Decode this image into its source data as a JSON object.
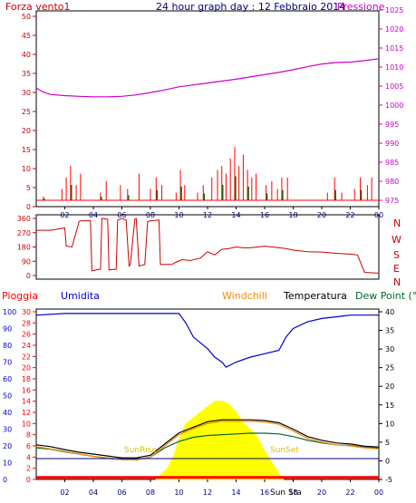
{
  "header": {
    "left_label": "Forza vento1",
    "title": "24 hour graph day : 12 Febbraio 2014",
    "right_label": "Pressione"
  },
  "wind_dir_labels": [
    "N",
    "W",
    "S",
    "E",
    "N"
  ],
  "bottom_header": {
    "rain": "Pioggia",
    "humidity": "Umidita",
    "windchill": "Windchill",
    "temperature": "Temperatura",
    "dewpoint": "Dew Point (°C"
  },
  "annotations": {
    "sunrise": "SunRise",
    "sunset": "SunSet",
    "sun_sta": "Sun Sta"
  },
  "colors": {
    "frame": "#000000",
    "wind_axis": "#cc0000",
    "pressure": "#cc00cc",
    "wind_gust": "#ff0000",
    "wind_avg": "#006600",
    "wind_blue": "#0000cc",
    "direction": "#cc0000",
    "humidity": "#0000cc",
    "temperature": "#000000",
    "windchill": "#ff8800",
    "dewpoint": "#006633",
    "solar": "#ffff00",
    "rain": "#ff0000",
    "zero_line": "#000080"
  },
  "chart_data": [
    {
      "type": "line",
      "panel": "top",
      "x_ticks": [
        "02",
        "04",
        "06",
        "08",
        "10",
        "12",
        "14",
        "16",
        "18",
        "20",
        "22",
        "00"
      ],
      "left_axis": {
        "ticks": [
          0,
          5,
          10,
          15,
          20,
          25,
          30,
          35,
          40,
          45,
          50
        ],
        "ylim": [
          0,
          50
        ]
      },
      "right_axis": {
        "ticks": [
          975,
          980,
          985,
          990,
          995,
          1000,
          1005,
          1010,
          1015,
          1020,
          1025
        ],
        "ylim": [
          975,
          1025
        ]
      },
      "series": [
        {
          "name": "Pressione",
          "axis": "right",
          "x": [
            0,
            0.5,
            1,
            2,
            3,
            4,
            5,
            6,
            7,
            8,
            9,
            10,
            11,
            12,
            13,
            14,
            15,
            16,
            17,
            18,
            19,
            20,
            21,
            22,
            23,
            24
          ],
          "values": [
            1004.5,
            1003.4,
            1002.8,
            1002.5,
            1002.3,
            1002.2,
            1002.2,
            1002.3,
            1002.7,
            1003.3,
            1004.0,
            1004.8,
            1005.3,
            1005.8,
            1006.3,
            1006.8,
            1007.4,
            1008.0,
            1008.6,
            1009.3,
            1010.1,
            1010.8,
            1011.2,
            1011.3,
            1011.7,
            1012.2
          ]
        },
        {
          "name": "",
          "axis": "left",
          "style": "bars",
          "x": [
            0.5,
            1.8,
            2.1,
            2.4,
            2.8,
            3.1,
            4.5,
            4.9,
            5.9,
            6.4,
            7.2,
            8.0,
            8.4,
            8.8,
            9.8,
            10.1,
            10.4,
            11.3,
            11.7,
            12.3,
            12.7,
            13.0,
            13.3,
            13.6,
            13.9,
            14.2,
            14.5,
            14.8,
            15.1,
            15.4,
            16.1,
            16.5,
            16.9,
            17.2,
            17.6,
            20.4,
            20.9,
            21.4,
            22.3,
            22.7,
            23.2,
            23.5
          ],
          "values": [
            1,
            3,
            6,
            9,
            4,
            7,
            2,
            5,
            4,
            3,
            7,
            3,
            6,
            4,
            2,
            8,
            4,
            2,
            4,
            6,
            8,
            9,
            7,
            11,
            14,
            9,
            12,
            8,
            6,
            7,
            4,
            5,
            3,
            6,
            6,
            2,
            6,
            2,
            3,
            6,
            4,
            6
          ]
        }
      ]
    },
    {
      "type": "line",
      "panel": "middle",
      "x_ticks": [],
      "left_axis": {
        "ticks": [
          0,
          90,
          180,
          270,
          360
        ],
        "ylim": [
          0,
          360
        ]
      },
      "series": [
        {
          "name": "",
          "x": [
            0,
            1,
            2,
            2.1,
            2.5,
            3,
            3.1,
            3.8,
            3.9,
            4.5,
            4.6,
            5.0,
            5.1,
            5.6,
            5.7,
            6.0,
            6.3,
            6.5,
            6.6,
            6.9,
            7.0,
            7.2,
            7.6,
            7.8,
            8.0,
            8.6,
            8.7,
            9.5,
            9.7,
            10.2,
            10.8,
            11.5,
            12,
            12.5,
            13,
            13.5,
            14,
            14.5,
            15,
            15.5,
            16,
            17,
            17.5,
            18,
            19,
            20,
            21,
            22,
            22.5,
            23,
            24
          ],
          "values": [
            285,
            285,
            300,
            185,
            180,
            340,
            345,
            345,
            30,
            40,
            360,
            355,
            35,
            40,
            350,
            360,
            350,
            60,
            70,
            355,
            360,
            60,
            70,
            340,
            345,
            350,
            70,
            70,
            80,
            100,
            95,
            110,
            150,
            130,
            165,
            170,
            180,
            175,
            175,
            180,
            185,
            175,
            170,
            160,
            150,
            148,
            140,
            135,
            130,
            20,
            15
          ]
        }
      ]
    },
    {
      "type": "line",
      "panel": "bottom",
      "x_ticks": [
        "02",
        "04",
        "06",
        "08",
        "10",
        "12",
        "14",
        "16",
        "18",
        "20",
        "22",
        "00"
      ],
      "humidity_axis": {
        "ticks": [
          0,
          10,
          20,
          30,
          40,
          50,
          60,
          70,
          80,
          90,
          100
        ],
        "ylim": [
          0,
          100
        ]
      },
      "left_axis": {
        "ticks": [
          0,
          2,
          4,
          6,
          8,
          10,
          12,
          14,
          16,
          18,
          20,
          22,
          24,
          26,
          28,
          30
        ],
        "ylim": [
          0,
          30
        ]
      },
      "right_axis": {
        "ticks": [
          -5,
          0,
          5,
          10,
          15,
          20,
          25,
          30,
          35,
          40
        ],
        "ylim": [
          -5,
          40
        ]
      },
      "series": [
        {
          "name": "Umidita",
          "axis": "humidity",
          "x": [
            0,
            2,
            4,
            6,
            8,
            9,
            10,
            10.5,
            11,
            12,
            12.5,
            13,
            13.3,
            14,
            15,
            16,
            17,
            17.5,
            18,
            19,
            20,
            21,
            22,
            23,
            24
          ],
          "values": [
            98,
            99,
            99,
            99,
            99,
            99,
            99,
            93,
            85,
            78,
            73,
            70,
            67,
            70,
            73,
            75,
            77,
            85,
            90,
            94,
            96,
            97,
            98,
            98,
            98
          ]
        },
        {
          "name": "Temperatura",
          "axis": "right",
          "x": [
            0,
            1,
            2,
            3,
            4,
            5,
            6,
            7,
            8,
            9,
            10,
            11,
            12,
            13,
            14,
            15,
            16,
            17,
            18,
            19,
            20,
            21,
            22,
            23,
            24
          ],
          "values": [
            4.3,
            3.8,
            3.0,
            2.3,
            1.8,
            1.3,
            0.8,
            0.8,
            1.5,
            4.5,
            7.5,
            9.0,
            10.5,
            11.0,
            11.0,
            11.0,
            10.8,
            10.2,
            8.5,
            6.5,
            5.5,
            4.8,
            4.5,
            3.9,
            3.7
          ]
        },
        {
          "name": "Windchill",
          "axis": "right",
          "x": [
            0,
            1,
            2,
            3,
            4,
            5,
            6,
            7,
            8,
            9,
            10,
            11,
            12,
            13,
            14,
            15,
            16,
            17,
            18,
            19,
            20,
            21,
            22,
            23,
            24
          ],
          "values": [
            3.8,
            3.2,
            2.5,
            1.8,
            1.2,
            0.8,
            0.3,
            0.2,
            1.0,
            4.0,
            7.0,
            8.6,
            10.0,
            10.6,
            10.6,
            10.6,
            10.4,
            9.8,
            8.0,
            6.0,
            5.0,
            4.3,
            4.0,
            3.5,
            3.2
          ]
        },
        {
          "name": "Dew Point",
          "axis": "right",
          "x": [
            0,
            1,
            2,
            3,
            4,
            5,
            6,
            7,
            8,
            9,
            10,
            11,
            12,
            13,
            14,
            15,
            16,
            17,
            18,
            19,
            20,
            21,
            22,
            23,
            24
          ],
          "values": [
            3.5,
            3.1,
            2.4,
            1.8,
            1.2,
            0.7,
            0.3,
            0.3,
            1.0,
            3.5,
            5.2,
            6.3,
            6.8,
            7.0,
            7.2,
            7.4,
            7.4,
            7.2,
            6.5,
            5.5,
            4.8,
            4.3,
            4.1,
            3.6,
            3.4
          ]
        },
        {
          "name": "",
          "axis": "left",
          "style": "area",
          "x": [
            8.4,
            8.8,
            9.2,
            9.6,
            10.0,
            10.5,
            11,
            11.5,
            12,
            12.5,
            13,
            13.5,
            14,
            14.5,
            15,
            15.5,
            16,
            16.5,
            17,
            17.3
          ],
          "values": [
            0,
            1,
            2,
            4,
            7,
            10,
            11,
            12,
            13,
            14,
            14,
            13.5,
            12,
            10,
            9,
            7.5,
            5,
            3,
            1,
            0
          ]
        },
        {
          "name": "Pioggia",
          "axis": "left",
          "x": [
            0,
            24
          ],
          "values": [
            0.2,
            0.2
          ]
        }
      ]
    }
  ]
}
